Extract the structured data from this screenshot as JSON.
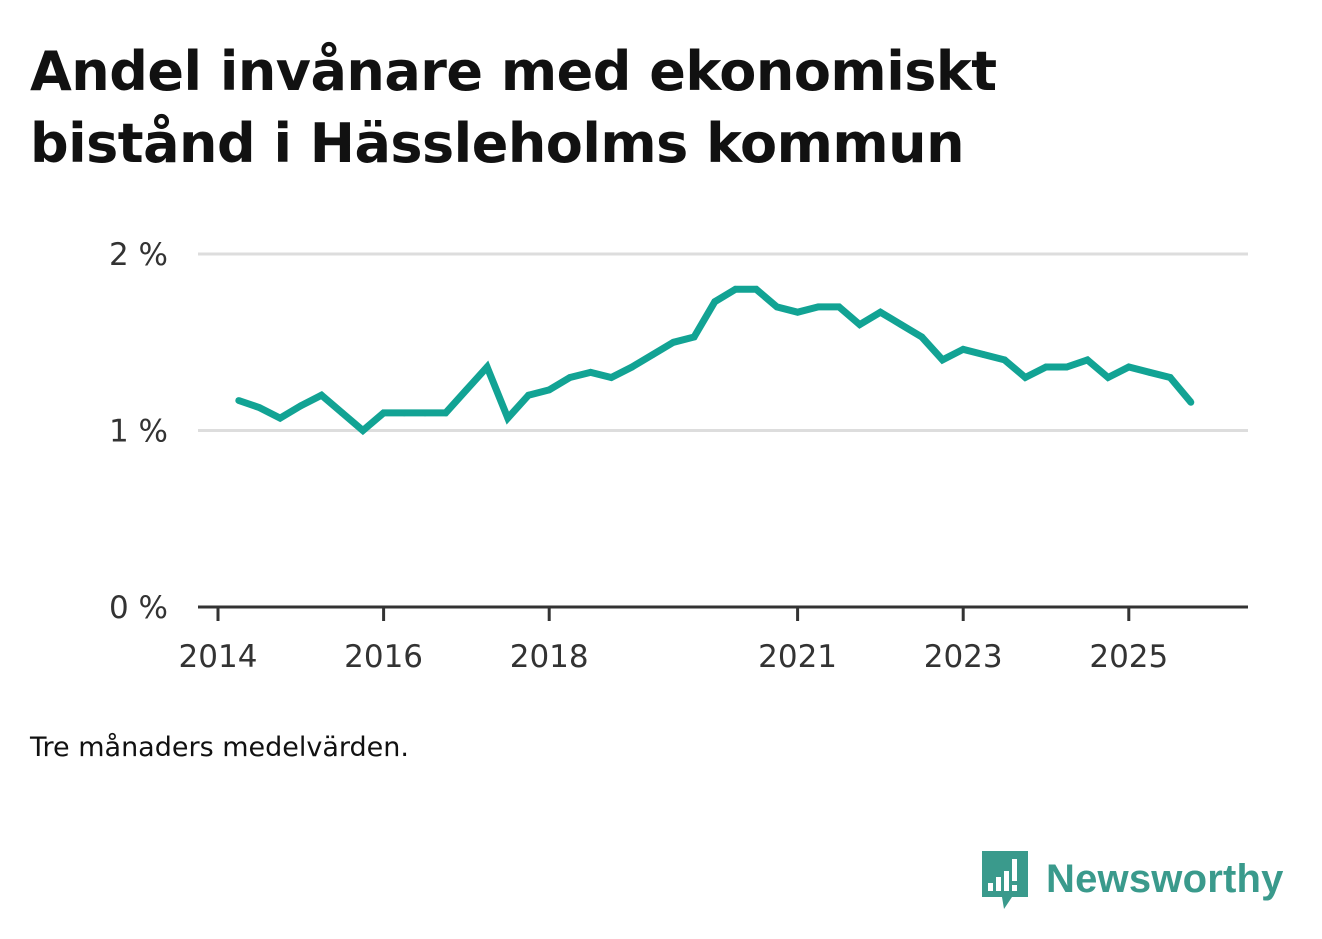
{
  "chart_data": {
    "type": "line",
    "title": "Andel invånare med ekonomiskt bistånd i Hässleholms kommun",
    "note": "Tre månaders medelvärden.",
    "brand": "Newsworthy",
    "xlabel": "",
    "ylabel": "",
    "ylim": [
      0,
      2
    ],
    "xlim": [
      2013.9,
      2027.0
    ],
    "yticks": [
      {
        "value": 0,
        "label": "0 %"
      },
      {
        "value": 1,
        "label": "1 %"
      },
      {
        "value": 2,
        "label": "2 %"
      }
    ],
    "xticks": [
      {
        "value": 2014,
        "label": "2014"
      },
      {
        "value": 2016,
        "label": "2016"
      },
      {
        "value": 2018,
        "label": "2018"
      },
      {
        "value": 2021,
        "label": "2021"
      },
      {
        "value": 2023,
        "label": "2023"
      },
      {
        "value": 2025,
        "label": "2025"
      }
    ],
    "grid": true,
    "colors": {
      "line": "#12a394",
      "grid": "#dddddd",
      "axis": "#333333",
      "brand": "#3a9a8c"
    },
    "series": [
      {
        "name": "Andel invånare med ekonomiskt bistånd",
        "x": [
          2014.25,
          2014.5,
          2014.75,
          2015.0,
          2015.25,
          2015.5,
          2015.75,
          2016.0,
          2016.25,
          2016.5,
          2016.75,
          2017.0,
          2017.25,
          2017.5,
          2017.75,
          2018.0,
          2018.25,
          2018.5,
          2018.75,
          2019.0,
          2019.25,
          2019.5,
          2019.75,
          2020.0,
          2020.25,
          2020.5,
          2020.75,
          2021.0,
          2021.25,
          2021.5,
          2021.75,
          2022.0,
          2022.25,
          2022.5,
          2022.75,
          2023.0,
          2023.25,
          2023.5,
          2023.75,
          2024.0,
          2024.25,
          2024.5,
          2024.75,
          2025.0,
          2025.25,
          2025.5,
          2025.75
        ],
        "values": [
          1.17,
          1.13,
          1.07,
          1.14,
          1.2,
          1.1,
          1.0,
          1.1,
          1.1,
          1.1,
          1.1,
          1.23,
          1.36,
          1.07,
          1.2,
          1.23,
          1.3,
          1.33,
          1.3,
          1.36,
          1.43,
          1.5,
          1.53,
          1.73,
          1.8,
          1.8,
          1.7,
          1.67,
          1.7,
          1.7,
          1.6,
          1.67,
          1.6,
          1.53,
          1.4,
          1.46,
          1.43,
          1.4,
          1.3,
          1.36,
          1.36,
          1.4,
          1.3,
          1.36,
          1.33,
          1.3,
          1.16
        ]
      }
    ]
  }
}
